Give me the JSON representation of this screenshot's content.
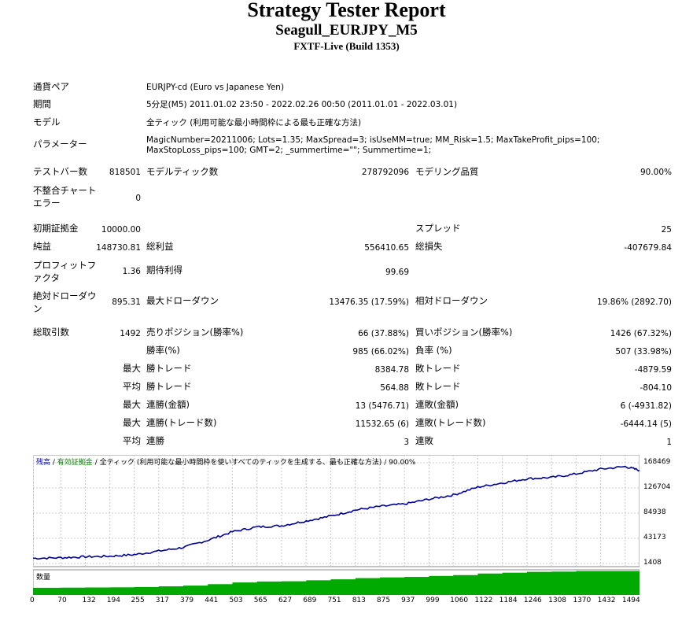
{
  "header": {
    "title": "Strategy Tester Report",
    "subtitle": "Seagull_EURJPY_M5",
    "server": "FXTF-Live (Build 1353)"
  },
  "info": {
    "symbol_label": "通貨ペア",
    "symbol_value": "EURJPY-cd (Euro vs Japanese Yen)",
    "period_label": "期間",
    "period_value": "5分足(M5) 2011.01.02 23:50 - 2022.02.26 00:50 (2011.01.01 - 2022.03.01)",
    "model_label": "モデル",
    "model_value": "全ティック (利用可能な最小時間枠による最も正確な方法)",
    "params_label": "パラメーター",
    "params_value": "MagicNumber=20211006; Lots=1.35; MaxSpread=3; isUseMM=true; MM_Risk=1.5; MaxTakeProfit_pips=100; MaxStopLoss_pips=100; GMT=2; _summertime=\"\"; Summertime=1;"
  },
  "stats": {
    "bars_label": "テストバー数",
    "bars_value": "818501",
    "ticks_label": "モデルティック数",
    "ticks_value": "278792096",
    "quality_label": "モデリング品質",
    "quality_value": "90.00%",
    "mismatch_label": "不整合チャートエラー",
    "mismatch_value": "0",
    "deposit_label": "初期証拠金",
    "deposit_value": "10000.00",
    "spread_label": "スプレッド",
    "spread_value": "25",
    "net_label": "純益",
    "net_value": "148730.81",
    "gross_profit_label": "総利益",
    "gross_profit_value": "556410.65",
    "gross_loss_label": "総損失",
    "gross_loss_value": "-407679.84",
    "pf_label": "プロフィットファクタ",
    "pf_value": "1.36",
    "expected_label": "期待利得",
    "expected_value": "99.69",
    "abs_dd_label": "絶対ドローダウン",
    "abs_dd_value": "895.31",
    "max_dd_label": "最大ドローダウン",
    "max_dd_value": "13476.35 (17.59%)",
    "rel_dd_label": "相対ドローダウン",
    "rel_dd_value": "19.86% (2892.70)",
    "trades_label": "総取引数",
    "trades_value": "1492",
    "short_label": "売りポジション(勝率%)",
    "short_value": "66 (37.88%)",
    "long_label": "買いポジション(勝率%)",
    "long_value": "1426 (67.32%)",
    "win_label": "勝率(%)",
    "win_value": "985 (66.02%)",
    "loss_label": "負率 (%)",
    "loss_value": "507 (33.98%)",
    "largest_label": "最大",
    "largest_win_label": "勝トレード",
    "largest_win_value": "8384.78",
    "largest_loss_label": "敗トレード",
    "largest_loss_value": "-4879.59",
    "average_label": "平均",
    "avg_win_label": "勝トレード",
    "avg_win_value": "564.88",
    "avg_loss_label": "敗トレード",
    "avg_loss_value": "-804.10",
    "max1_label": "最大",
    "max_consec_win_label": "連勝(金額)",
    "max_consec_win_value": "13 (5476.71)",
    "max_consec_loss_label": "連敗(金額)",
    "max_consec_loss_value": "6 (-4931.82)",
    "max2_label": "最大",
    "max_consec_profit_label": "連勝(トレード数)",
    "max_consec_profit_value": "11532.65 (6)",
    "max_consec_lossamt_label": "連敗(トレード数)",
    "max_consec_lossamt_value": "-6444.14 (5)",
    "avg2_label": "平均",
    "avg_consec_win_label": "連勝",
    "avg_consec_win_value": "3",
    "avg_consec_loss_label": "連敗",
    "avg_consec_loss_value": "1"
  },
  "chart_data": {
    "type": "line",
    "title_parts": [
      "残高",
      "有効証拠金",
      "全ティック (利用可能な最小時間枠を使いすべてのティックを生成する、最も正確な方法)",
      "90.00%"
    ],
    "volume_label": "数量",
    "ylim": [
      1408,
      168469
    ],
    "yticks": [
      "168469",
      "126704",
      "84938",
      "43173",
      "1408"
    ],
    "xticks": [
      0,
      70,
      132,
      194,
      255,
      317,
      379,
      441,
      503,
      565,
      627,
      689,
      751,
      813,
      875,
      937,
      999,
      1060,
      1122,
      1184,
      1246,
      1308,
      1370,
      1432,
      1494
    ],
    "xlim": [
      0,
      1530
    ],
    "series": [
      {
        "x": [
          0,
          70,
          132,
          194,
          255,
          317,
          379,
          441,
          503,
          565,
          627,
          689,
          751,
          813,
          875,
          937,
          999,
          1060,
          1122,
          1184,
          1246,
          1308,
          1370,
          1432,
          1494,
          1530
        ],
        "values": [
          10000,
          11000,
          12500,
          13500,
          16000,
          22000,
          28000,
          40000,
          54000,
          62000,
          64000,
          72000,
          80000,
          90000,
          96000,
          100000,
          108000,
          115000,
          128000,
          135000,
          142000,
          144000,
          150000,
          158000,
          162000,
          156000
        ]
      }
    ],
    "colors": {
      "balance": "#000099",
      "volume": "#00aa00",
      "grid": "#c8c8c8",
      "bg": "#ffffff"
    }
  }
}
